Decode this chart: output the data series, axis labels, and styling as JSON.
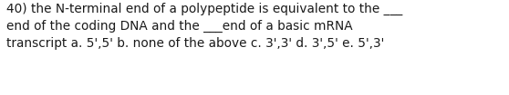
{
  "line1": "40) the N-terminal end of a polypeptide is equivalent to the ___",
  "line2": "end of the coding DNA and the ___end of a basic mRNA",
  "line3": "transcript a. 5',5' b. none of the above c. 3',3' d. 3',5' e. 5',3'",
  "background_color": "#ffffff",
  "text_color": "#1a1a1a",
  "font_size": 9.8,
  "fig_width": 5.58,
  "fig_height": 1.05,
  "dpi": 100
}
